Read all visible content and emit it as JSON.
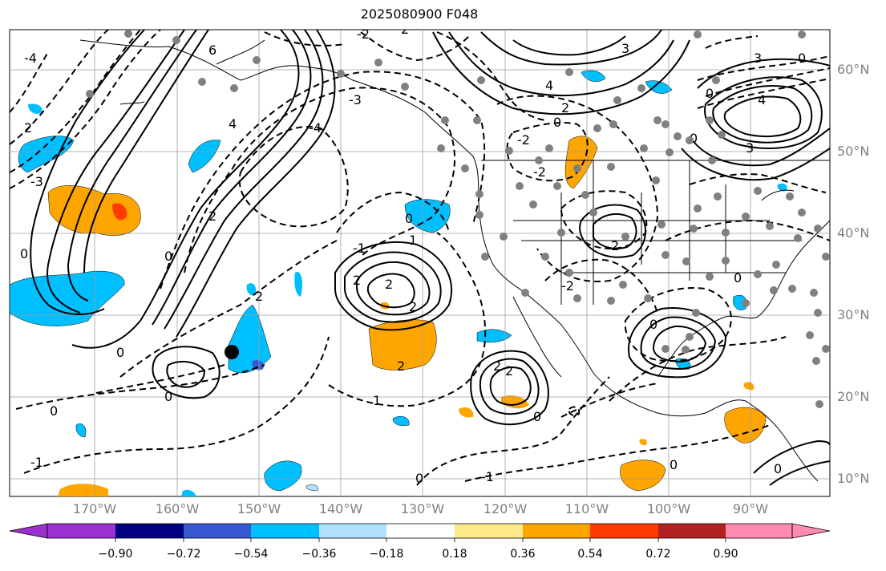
{
  "title": "2025080900 F048",
  "lat_labels": [
    "60°N",
    "50°N",
    "40°N",
    "30°N",
    "20°N",
    "10°N"
  ],
  "lon_labels": [
    "170°W",
    "160°W",
    "150°W",
    "140°W",
    "130°W",
    "120°W",
    "110°W",
    "100°W",
    "90°W"
  ],
  "contour_labels": [
    "-4",
    "-3",
    "-2",
    "-1",
    "0",
    "1",
    "2",
    "3",
    "4",
    "6"
  ],
  "colorbar": {
    "ticks": [
      "−0.90",
      "−0.72",
      "−0.54",
      "−0.36",
      "−0.18",
      "0.18",
      "0.36",
      "0.54",
      "0.72",
      "0.90"
    ],
    "colors": [
      "#9b30d0",
      "#000080",
      "#3758d0",
      "#00bfff",
      "#afe0ff",
      "#ffffff",
      "#ffeb8a",
      "#ffa500",
      "#ff3a00",
      "#b22222",
      "#ff8cb0"
    ]
  },
  "colors": {
    "grid": "#9e9e9e",
    "coast": "#000000",
    "station": "#808080",
    "axis_label": "#7f7f7f"
  }
}
